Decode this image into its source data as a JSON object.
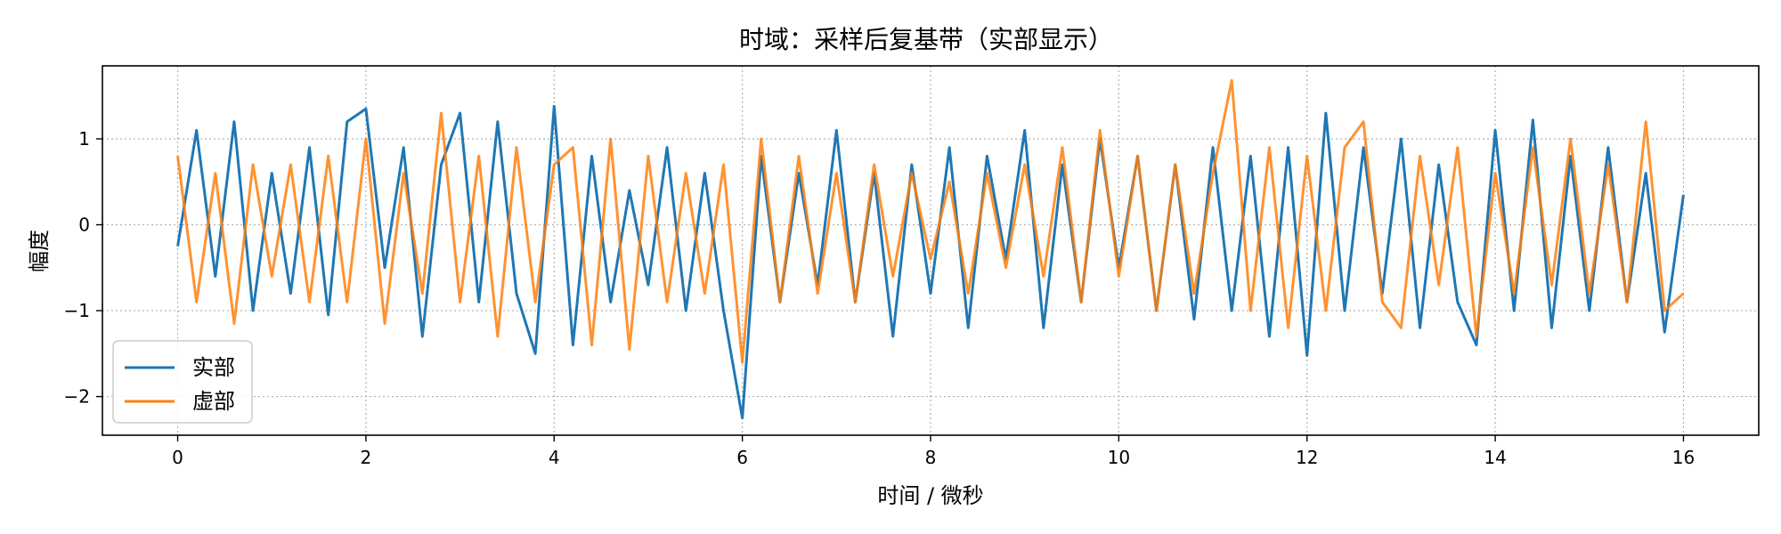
{
  "chart_data": {
    "type": "line",
    "title": "时域：采样后复基带（实部显示）",
    "xlabel": "时间 / 微秒",
    "ylabel": "幅度",
    "xlim": [
      -0.8,
      16.8
    ],
    "ylim": [
      -2.45,
      1.85
    ],
    "xticks": [
      0,
      2,
      4,
      6,
      8,
      10,
      12,
      14,
      16
    ],
    "yticks": [
      1,
      0,
      -1,
      -2
    ],
    "ytick_labels": [
      "1",
      "0",
      "−1",
      "−2"
    ],
    "grid": true,
    "grid_style": "dotted",
    "legend_position": "lower-left",
    "x": [
      0.0,
      0.2,
      0.4,
      0.6,
      0.8,
      1.0,
      1.2,
      1.4,
      1.6,
      1.8,
      2.0,
      2.2,
      2.4,
      2.6,
      2.8,
      3.0,
      3.2,
      3.4,
      3.6,
      3.8,
      4.0,
      4.2,
      4.4,
      4.6,
      4.8,
      5.0,
      5.2,
      5.4,
      5.6,
      5.8,
      6.0,
      6.2,
      6.4,
      6.6,
      6.8,
      7.0,
      7.2,
      7.4,
      7.6,
      7.8,
      8.0,
      8.2,
      8.4,
      8.6,
      8.8,
      9.0,
      9.2,
      9.4,
      9.6,
      9.8,
      10.0,
      10.2,
      10.4,
      10.6,
      10.8,
      11.0,
      11.2,
      11.4,
      11.6,
      11.8,
      12.0,
      12.2,
      12.4,
      12.6,
      12.8,
      13.0,
      13.2,
      13.4,
      13.6,
      13.8,
      14.0,
      14.2,
      14.4,
      14.6,
      14.8,
      15.0,
      15.2,
      15.4,
      15.6,
      15.8,
      16.0
    ],
    "series": [
      {
        "name": "实部",
        "color": "#1f77b4",
        "values": [
          -0.25,
          1.1,
          -0.6,
          1.2,
          -1.0,
          0.6,
          -0.8,
          0.9,
          -1.05,
          1.2,
          1.35,
          -0.5,
          0.9,
          -1.3,
          0.7,
          1.3,
          -0.9,
          1.2,
          -0.8,
          -1.5,
          1.38,
          -1.4,
          0.8,
          -0.9,
          0.4,
          -0.7,
          0.9,
          -1.0,
          0.6,
          -1.0,
          -2.25,
          0.8,
          -0.9,
          0.6,
          -0.7,
          1.1,
          -0.9,
          0.6,
          -1.3,
          0.7,
          -0.8,
          0.9,
          -1.2,
          0.8,
          -0.4,
          1.1,
          -1.2,
          0.7,
          -0.9,
          1.0,
          -0.5,
          0.8,
          -1.0,
          0.7,
          -1.1,
          0.9,
          -1.0,
          0.8,
          -1.3,
          0.9,
          -1.52,
          1.3,
          -1.0,
          0.9,
          -0.8,
          1.0,
          -1.2,
          0.7,
          -0.9,
          -1.4,
          1.1,
          -1.0,
          1.22,
          -1.2,
          0.8,
          -1.0,
          0.9,
          -0.9,
          0.6,
          -1.25,
          0.35
        ]
      },
      {
        "name": "虚部",
        "color": "#ff7f0e",
        "values": [
          0.8,
          -0.9,
          0.6,
          -1.15,
          0.7,
          -0.6,
          0.7,
          -0.9,
          0.8,
          -0.9,
          1.0,
          -1.15,
          0.6,
          -0.8,
          1.3,
          -0.9,
          0.8,
          -1.3,
          0.9,
          -0.9,
          0.7,
          0.9,
          -1.4,
          1.0,
          -1.45,
          0.8,
          -0.9,
          0.6,
          -0.8,
          0.7,
          -1.6,
          1.0,
          -0.9,
          0.8,
          -0.8,
          0.6,
          -0.9,
          0.7,
          -0.6,
          0.6,
          -0.4,
          0.5,
          -0.8,
          0.6,
          -0.5,
          0.7,
          -0.6,
          0.9,
          -0.9,
          1.1,
          -0.6,
          0.8,
          -1.0,
          0.7,
          -0.8,
          0.6,
          1.68,
          -1.0,
          0.9,
          -1.2,
          0.8,
          -1.0,
          0.9,
          1.2,
          -0.9,
          -1.2,
          0.8,
          -0.7,
          0.9,
          -1.3,
          0.6,
          -0.8,
          0.9,
          -0.7,
          1.0,
          -0.8,
          0.7,
          -0.9,
          1.2,
          -1.0,
          -0.8
        ]
      }
    ]
  }
}
